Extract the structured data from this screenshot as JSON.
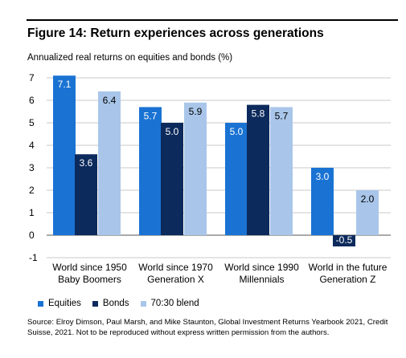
{
  "figure": {
    "title": "Figure 14: Return experiences across generations",
    "subtitle": "Annualized real returns on equities and bonds (%)",
    "source": "Source: Elroy Dimson, Paul Marsh, and Mike Staunton, Global Investment Returns Yearbook 2021, Credit Suisse, 2021. Not to be reproduced without express written permission from the authors."
  },
  "colors": {
    "Equities": "#1a73d3",
    "Bonds": "#0c2a5c",
    "70:30 blend": "#a9c6ea"
  },
  "chart_data": {
    "type": "bar",
    "title": "Figure 14: Return experiences across generations",
    "ylabel": "Annualized real returns on equities and bonds (%)",
    "xlabel": "",
    "categories": [
      [
        "World since 1950",
        "Baby Boomers"
      ],
      [
        "World since 1970",
        "Generation X"
      ],
      [
        "World since 1990",
        "Millennials"
      ],
      [
        "World in the future",
        "Generation Z"
      ]
    ],
    "series": [
      {
        "name": "Equities",
        "values": [
          7.1,
          5.7,
          5.0,
          3.0
        ]
      },
      {
        "name": "Bonds",
        "values": [
          3.6,
          5.0,
          5.8,
          -0.5
        ]
      },
      {
        "name": "70:30 blend",
        "values": [
          6.4,
          5.9,
          5.7,
          2.0
        ]
      }
    ],
    "ylim": [
      -1,
      7
    ],
    "yticks": [
      -1,
      0,
      1,
      2,
      3,
      4,
      5,
      6,
      7
    ],
    "grid": true,
    "legend": "bottom-left"
  }
}
